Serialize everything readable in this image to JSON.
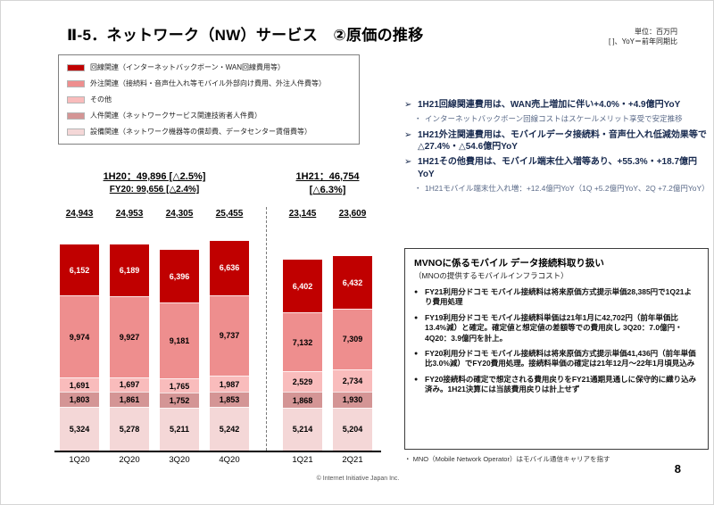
{
  "title": "Ⅱ-5．ネットワーク（NW）サービス　②原価の推移",
  "notes": {
    "unit": "単位：百万円",
    "yoy": "[ ]、YoY＝前年同期比"
  },
  "icons": {
    "insight_marker": "➢",
    "sub_marker": "・",
    "box_marker": "●"
  },
  "legend": {
    "items": [
      {
        "key": "circuit",
        "label": "回線関連（インターネットバックボーン・WAN回線費用等）",
        "color": "#c00000"
      },
      {
        "key": "outsourcing",
        "label": "外注関連（接続料・音声仕入れ等モバイル外部向け費用、外注人件費等）",
        "color": "#ee8e8e"
      },
      {
        "key": "other",
        "label": "その他",
        "color": "#f9bcbc"
      },
      {
        "key": "personnel",
        "label": "人件関連（ネットワークサービス関連技術者人件費）",
        "color": "#d49595"
      },
      {
        "key": "equipment",
        "label": "設備関連（ネットワーク機器等の償却費、データセンター賃借費等）",
        "color": "#f4d7d7"
      }
    ]
  },
  "chart_data": {
    "type": "bar",
    "stacked": true,
    "unit": "百万円",
    "title": "ネットワーク（NW）サービス 原価の推移",
    "categories": [
      "1Q20",
      "2Q20",
      "3Q20",
      "4Q20",
      "1Q21",
      "2Q21"
    ],
    "totals": [
      24943,
      24953,
      24305,
      25455,
      23145,
      23609
    ],
    "series": [
      {
        "key": "circuit",
        "name": "回線関連",
        "color": "#c00000",
        "label_color": "#ffffff",
        "values": [
          6152,
          6189,
          6396,
          6636,
          6402,
          6432
        ]
      },
      {
        "key": "outsourcing",
        "name": "外注関連",
        "color": "#ee8e8e",
        "label_color": "#000000",
        "values": [
          9974,
          9927,
          9181,
          9737,
          7132,
          7309
        ]
      },
      {
        "key": "other",
        "name": "その他",
        "color": "#f9bcbc",
        "label_color": "#000000",
        "values": [
          1691,
          1697,
          1765,
          1987,
          2529,
          2734
        ]
      },
      {
        "key": "personnel",
        "name": "人件関連",
        "color": "#d49595",
        "label_color": "#000000",
        "values": [
          1803,
          1861,
          1752,
          1853,
          1868,
          1930
        ]
      },
      {
        "key": "equipment",
        "name": "設備関連",
        "color": "#f4d7d7",
        "label_color": "#000000",
        "values": [
          5324,
          5278,
          5211,
          5242,
          5214,
          5204
        ]
      }
    ],
    "headers": {
      "h1_20": "1H20：49,896 [△2.5%]",
      "fy20": "FY20: 99,656 [△2.4%]",
      "h1_21_line1": "1H21：46,754",
      "h1_21_line2": "[△6.3%]"
    },
    "ymax": 25455,
    "ylim": [
      0,
      25455
    ],
    "grid": false,
    "legend_position": "top-left"
  },
  "insights": [
    {
      "text": "1H21回線関連費用は、WAN売上増加に伴い+4.0%・+4.9億円YoY",
      "sub": [
        "インターネットバックボーン回線コストはスケールメリット享受で安定推移"
      ]
    },
    {
      "text": "1H21外注関連費用は、モバイルデータ接続料・音声仕入れ低減効果等で△27.4%・△54.6億円YoY",
      "sub": []
    },
    {
      "text": "1H21その他費用は、モバイル端末仕入増等あり、+55.3%・+18.7億円YoY",
      "sub": [
        "1H21モバイル端末仕入れ増：+12.4億円YoY（1Q +5.2億円YoY、2Q +7.2億円YoY）"
      ]
    }
  ],
  "mvno_box": {
    "title": "MVNOに係るモバイル データ接続料取り扱い",
    "subtitle": "（MNOの提供するモバイルインフラコスト）",
    "bullets": [
      "FY21利用分ドコモ モバイル接続料は将来原価方式提示単価28,385円で1Q21より費用処理",
      "FY19利用分ドコモ モバイル接続料単価は21年1月に42,702円（前年単価比13.4%減）と確定。確定値と想定値の差額等での費用戻し 3Q20：7.0億円・4Q20：3.9億円を計上。",
      "FY20利用分ドコモ モバイル接続料は将来原価方式提示単価41,436円（前年単価比3.0%減）でFY20費用処理。接続料単価の確定は21年12月～22年1月頃見込み",
      "FY20接続料の確定で想定される費用戻りをFY21通期見通しに保守的に織り込み済み。1H21決算には当該費用戻りは計上せず"
    ]
  },
  "mno_note": "・ MNO（Mobile Network Operator）はモバイル通信キャリアを指す",
  "footer": {
    "copyright": "© Internet Initiative Japan Inc.",
    "page_number": "8"
  }
}
